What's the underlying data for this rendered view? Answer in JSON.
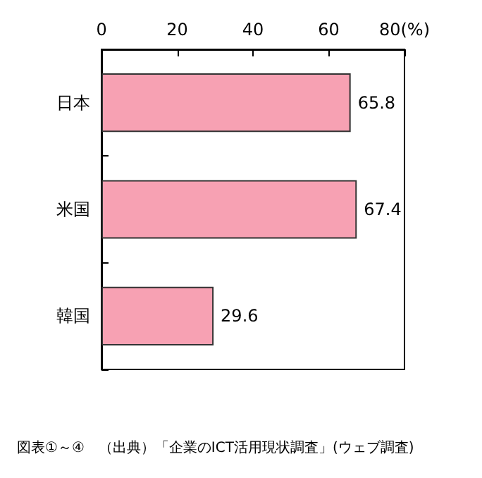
{
  "chart_data": {
    "type": "bar",
    "orientation": "horizontal",
    "categories": [
      "日本",
      "米国",
      "韓国"
    ],
    "values": [
      65.8,
      67.4,
      29.6
    ],
    "color": "#f7a1b3",
    "data_labels": true,
    "grid": false,
    "xlim": [
      0,
      80
    ],
    "xticks": [
      0,
      20,
      40,
      60,
      {
        "value": 80,
        "label": "80(%)"
      }
    ],
    "annotations": [
      "図表①～④　（出典）「企業のICT活用現状調査」(ウェブ調査)"
    ]
  }
}
